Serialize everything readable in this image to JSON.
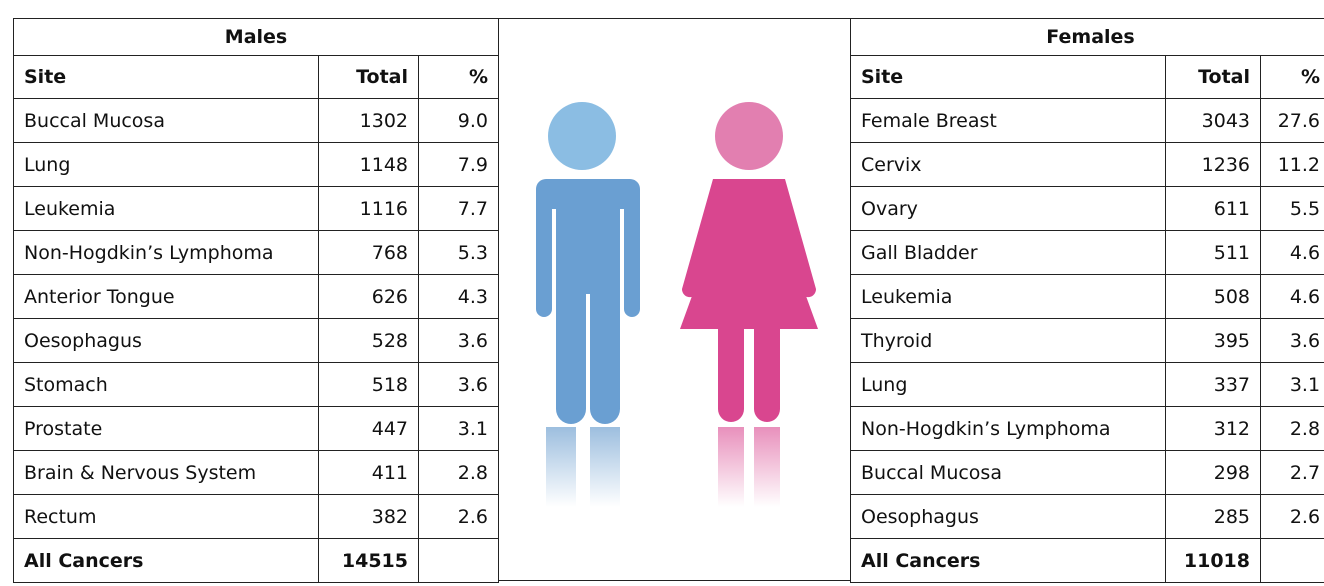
{
  "males": {
    "title": "Males",
    "columns": [
      "Site",
      "Total",
      "%"
    ],
    "rows": [
      [
        "Buccal Mucosa",
        1302,
        "9.0"
      ],
      [
        "Lung",
        1148,
        "7.9"
      ],
      [
        "Leukemia",
        1116,
        "7.7"
      ],
      [
        "Non-Hogdkin’s Lymphoma",
        768,
        "5.3"
      ],
      [
        "Anterior Tongue",
        626,
        "4.3"
      ],
      [
        "Oesophagus",
        528,
        "3.6"
      ],
      [
        "Stomach",
        518,
        "3.6"
      ],
      [
        "Prostate",
        447,
        "3.1"
      ],
      [
        "Brain & Nervous System",
        411,
        "2.8"
      ],
      [
        "Rectum",
        382,
        "2.6"
      ]
    ],
    "total": {
      "label": "All Cancers",
      "value": 14515
    }
  },
  "females": {
    "title": "Females",
    "columns": [
      "Site",
      "Total",
      "%"
    ],
    "rows": [
      [
        "Female Breast",
        3043,
        "27.6"
      ],
      [
        "Cervix",
        1236,
        "11.2"
      ],
      [
        "Ovary",
        611,
        "5.5"
      ],
      [
        "Gall Bladder",
        511,
        "4.6"
      ],
      [
        "Leukemia",
        508,
        "4.6"
      ],
      [
        "Thyroid",
        395,
        "3.6"
      ],
      [
        "Lung",
        337,
        "3.1"
      ],
      [
        "Non-Hogdkin’s Lymphoma",
        312,
        "2.8"
      ],
      [
        "Buccal Mucosa",
        298,
        "2.7"
      ],
      [
        "Oesophagus",
        285,
        "2.6"
      ]
    ],
    "total": {
      "label": "All Cancers",
      "value": 11018
    }
  }
}
